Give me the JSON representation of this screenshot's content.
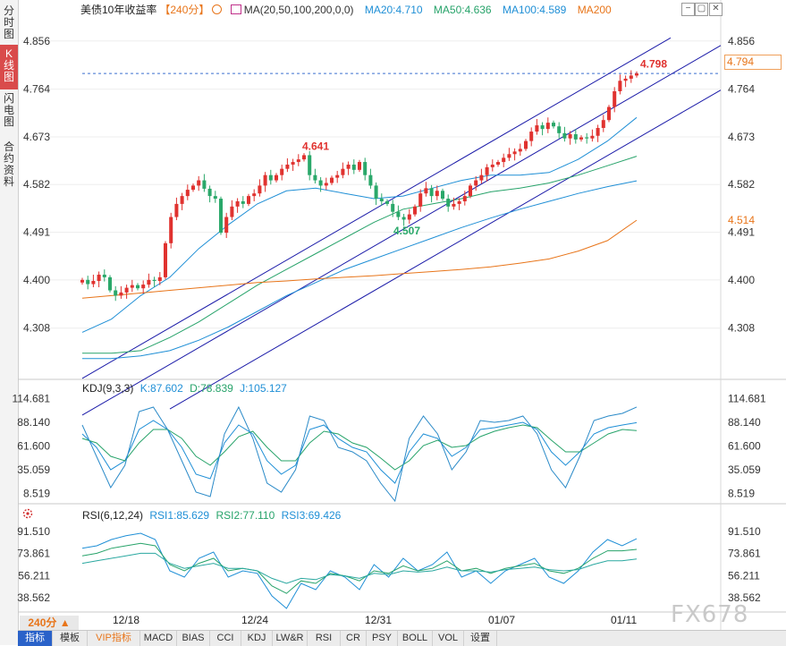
{
  "sidebar": {
    "tabs": [
      {
        "label": "分时图",
        "active": false
      },
      {
        "label": "K线图",
        "active": true
      },
      {
        "label": "闪电图",
        "active": false
      },
      {
        "label": "合约资料",
        "active": false
      }
    ]
  },
  "header": {
    "title": "美债10年收益率",
    "period": "【240分】",
    "ma_label": "MA(20,50,100,200,0,0)",
    "ma20": "MA20:4.710",
    "ma50": "MA50:4.636",
    "ma100": "MA100:4.589",
    "ma200": "MA200"
  },
  "kdj": {
    "label": "KDJ(9,3,3)",
    "k": "K:87.602",
    "d": "D:78.839",
    "j": "J:105.127"
  },
  "rsi": {
    "label": "RSI(6,12,24)",
    "rsi1": "RSI1:85.629",
    "rsi2": "RSI2:77.110",
    "rsi3": "RSI3:69.426"
  },
  "price_tag": "4.794",
  "ma200_value": "4.514",
  "period_button": "240分 ▲",
  "x_labels": [
    "12/18",
    "12/24",
    "12/31",
    "01/07",
    "01/11"
  ],
  "toolbar": {
    "tabs": [
      "指标",
      "模板",
      "VIP指标",
      "MACD",
      "BIAS",
      "CCI",
      "KDJ",
      "LW&R",
      "RSI",
      "CR",
      "PSY",
      "BOLL",
      "VOL",
      "设置"
    ]
  },
  "watermark": "FX678",
  "colors": {
    "up": "#e0322f",
    "down": "#2aa86a",
    "ma20": "#1f8fd6",
    "ma50": "#27a36a",
    "ma100": "#1f8fd6",
    "ma200": "#e8751a",
    "channel": "#1a1aa8"
  },
  "chart_data": [
    {
      "type": "candlestick",
      "title": "美债10年收益率",
      "ylim": [
        4.217,
        4.9
      ],
      "y_ticks": [
        "4.856",
        "4.764",
        "4.673",
        "4.582",
        "4.491",
        "4.400",
        "4.308"
      ],
      "annotations": [
        {
          "label": "4.641",
          "value": 4.641
        },
        {
          "label": "4.507",
          "value": 4.507
        },
        {
          "label": "4.798",
          "value": 4.798
        }
      ],
      "close": [
        4.4,
        4.392,
        4.398,
        4.41,
        4.405,
        4.38,
        4.37,
        4.376,
        4.385,
        4.39,
        4.384,
        4.391,
        4.4,
        4.398,
        4.405,
        4.47,
        4.52,
        4.545,
        4.56,
        4.572,
        4.58,
        4.59,
        4.574,
        4.56,
        4.555,
        4.49,
        4.52,
        4.54,
        4.55,
        4.545,
        4.56,
        4.565,
        4.58,
        4.6,
        4.59,
        4.6,
        4.612,
        4.62,
        4.625,
        4.63,
        4.638,
        4.6,
        4.59,
        4.58,
        4.585,
        4.595,
        4.6,
        4.612,
        4.62,
        4.61,
        4.625,
        4.6,
        4.58,
        4.555,
        4.55,
        4.545,
        4.53,
        4.52,
        4.515,
        4.525,
        4.54,
        4.565,
        4.575,
        4.56,
        4.57,
        4.555,
        4.54,
        4.545,
        4.55,
        4.56,
        4.58,
        4.59,
        4.6,
        4.615,
        4.62,
        4.625,
        4.633,
        4.64,
        4.645,
        4.65,
        4.665,
        4.683,
        4.695,
        4.688,
        4.7,
        4.693,
        4.68,
        4.67,
        4.678,
        4.668,
        4.672,
        4.67,
        4.675,
        4.69,
        4.705,
        4.73,
        4.76,
        4.78,
        4.784,
        4.79,
        4.794
      ],
      "series": [
        {
          "name": "MA20",
          "values": [
            4.3,
            4.325,
            4.37,
            4.405,
            4.46,
            4.505,
            4.545,
            4.57,
            4.575,
            4.565,
            4.555,
            4.56,
            4.575,
            4.59,
            4.6,
            4.6,
            4.605,
            4.63,
            4.665,
            4.71
          ]
        },
        {
          "name": "MA50",
          "values": [
            4.26,
            4.26,
            4.265,
            4.29,
            4.32,
            4.355,
            4.39,
            4.42,
            4.45,
            4.48,
            4.51,
            4.535,
            4.545,
            4.555,
            4.568,
            4.575,
            4.585,
            4.6,
            4.618,
            4.636
          ]
        },
        {
          "name": "MA100",
          "values": [
            4.25,
            4.25,
            4.255,
            4.265,
            4.285,
            4.31,
            4.34,
            4.37,
            4.395,
            4.42,
            4.44,
            4.46,
            4.48,
            4.5,
            4.518,
            4.535,
            4.55,
            4.565,
            4.578,
            4.589
          ]
        },
        {
          "name": "MA200",
          "values": [
            4.365,
            4.37,
            4.375,
            4.38,
            4.385,
            4.39,
            4.395,
            4.398,
            4.402,
            4.405,
            4.408,
            4.412,
            4.416,
            4.42,
            4.425,
            4.432,
            4.44,
            4.455,
            4.475,
            4.514
          ]
        }
      ]
    },
    {
      "type": "line",
      "title": "KDJ(9,3,3)",
      "ylim": [
        0,
        120
      ],
      "y_ticks": [
        "114.681",
        "88.140",
        "61.600",
        "35.059",
        "8.519"
      ],
      "series": [
        {
          "name": "K",
          "values": [
            75,
            60,
            35,
            45,
            80,
            90,
            80,
            60,
            30,
            25,
            65,
            85,
            75,
            45,
            30,
            40,
            80,
            85,
            70,
            60,
            55,
            35,
            20,
            55,
            75,
            70,
            50,
            60,
            80,
            82,
            85,
            88,
            80,
            55,
            40,
            55,
            75,
            82,
            85,
            87.602
          ]
        },
        {
          "name": "D",
          "values": [
            70,
            65,
            50,
            45,
            65,
            80,
            80,
            70,
            50,
            40,
            55,
            72,
            78,
            60,
            45,
            45,
            65,
            78,
            75,
            65,
            60,
            48,
            35,
            45,
            62,
            68,
            60,
            62,
            72,
            78,
            82,
            85,
            82,
            68,
            55,
            55,
            65,
            75,
            80,
            78.839
          ]
        },
        {
          "name": "J",
          "values": [
            85,
            50,
            15,
            40,
            100,
            105,
            80,
            45,
            10,
            5,
            75,
            105,
            70,
            20,
            10,
            35,
            95,
            90,
            60,
            55,
            45,
            20,
            0,
            70,
            95,
            75,
            35,
            55,
            90,
            88,
            90,
            95,
            75,
            35,
            15,
            50,
            90,
            95,
            98,
            105.127
          ]
        }
      ]
    },
    {
      "type": "line",
      "title": "RSI(6,12,24)",
      "ylim": [
        30,
        100
      ],
      "y_ticks": [
        "91.510",
        "73.861",
        "56.211",
        "38.562"
      ],
      "series": [
        {
          "name": "RSI1",
          "values": [
            78,
            80,
            85,
            88,
            90,
            85,
            60,
            55,
            70,
            75,
            55,
            60,
            58,
            40,
            30,
            50,
            45,
            60,
            55,
            45,
            65,
            55,
            70,
            60,
            65,
            75,
            55,
            60,
            50,
            60,
            65,
            70,
            55,
            50,
            60,
            75,
            85,
            80,
            85.629
          ]
        },
        {
          "name": "RSI2",
          "values": [
            72,
            74,
            78,
            80,
            82,
            80,
            65,
            60,
            66,
            70,
            60,
            62,
            60,
            48,
            42,
            52,
            50,
            58,
            56,
            52,
            60,
            58,
            64,
            60,
            62,
            68,
            60,
            62,
            58,
            62,
            64,
            66,
            60,
            58,
            62,
            70,
            76,
            76,
            77.11
          ]
        },
        {
          "name": "RSI3",
          "values": [
            66,
            68,
            70,
            72,
            74,
            74,
            66,
            62,
            64,
            66,
            62,
            62,
            60,
            54,
            50,
            54,
            53,
            57,
            56,
            54,
            58,
            57,
            60,
            59,
            60,
            63,
            60,
            60,
            59,
            61,
            62,
            63,
            61,
            60,
            61,
            65,
            68,
            68,
            69.426
          ]
        }
      ]
    }
  ]
}
